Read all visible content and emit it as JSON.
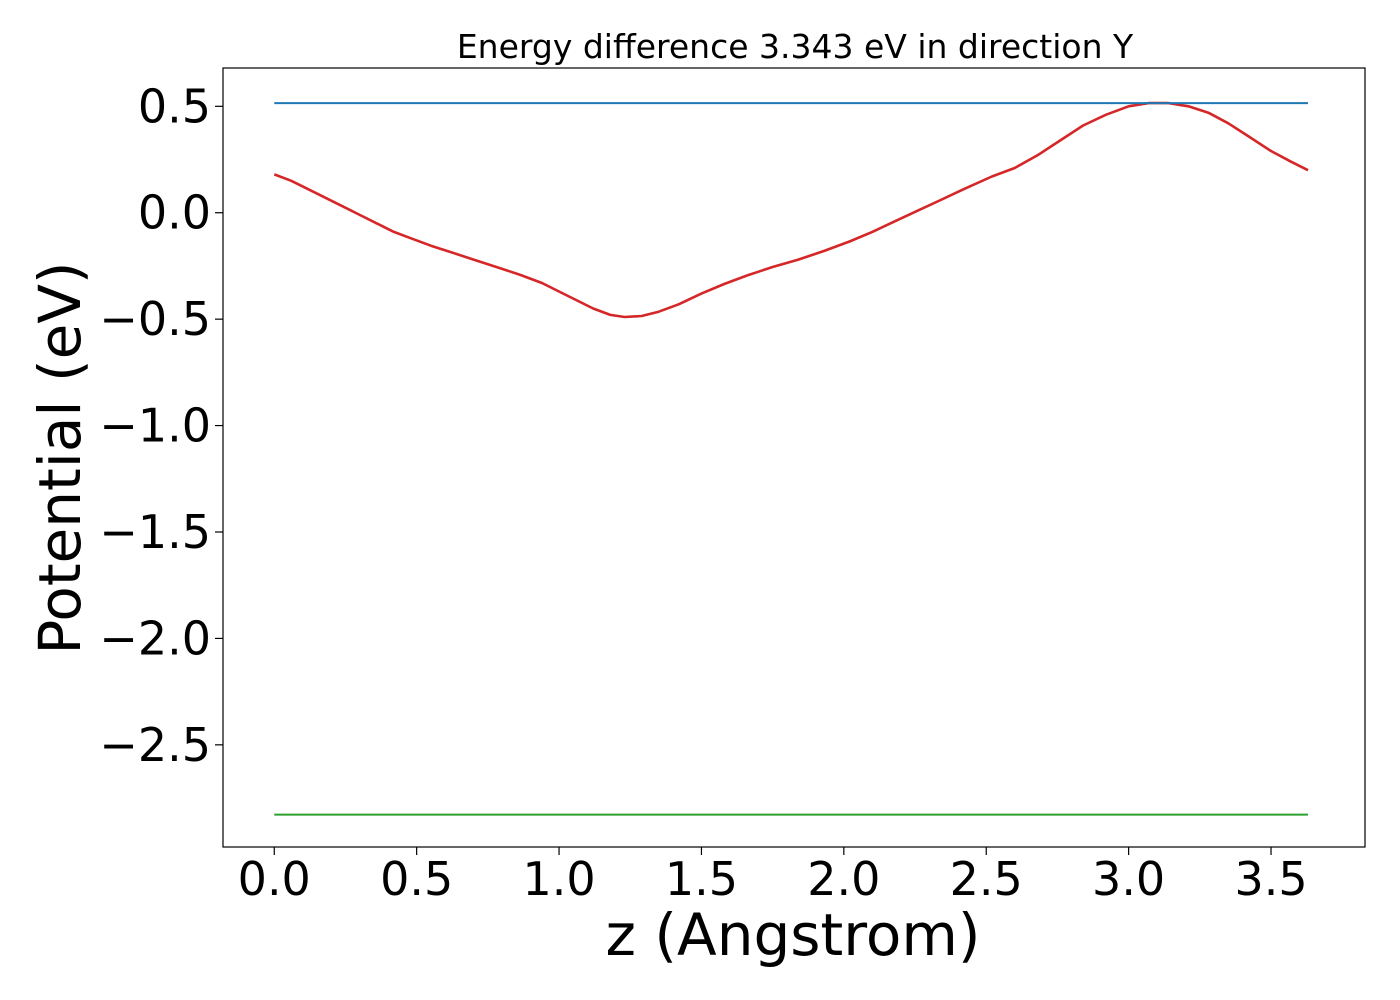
{
  "chart_data": {
    "type": "line",
    "title": "Energy difference 3.343 eV in direction Y",
    "xlabel": "z (Angstrom)",
    "ylabel": "Potential (eV)",
    "xlim": [
      -0.18,
      3.83
    ],
    "ylim": [
      -2.98,
      0.68
    ],
    "xticks": [
      {
        "value": 0.0,
        "label": "0.0"
      },
      {
        "value": 0.5,
        "label": "0.5"
      },
      {
        "value": 1.0,
        "label": "1.0"
      },
      {
        "value": 1.5,
        "label": "1.5"
      },
      {
        "value": 2.0,
        "label": "2.0"
      },
      {
        "value": 2.5,
        "label": "2.5"
      },
      {
        "value": 3.0,
        "label": "3.0"
      },
      {
        "value": 3.5,
        "label": "3.5"
      }
    ],
    "yticks": [
      {
        "value": 0.5,
        "label": "0.5"
      },
      {
        "value": 0.0,
        "label": "0.0"
      },
      {
        "value": -0.5,
        "label": "−0.5"
      },
      {
        "value": -1.0,
        "label": "−1.0"
      },
      {
        "value": -1.5,
        "label": "−1.5"
      },
      {
        "value": -2.0,
        "label": "−2.0"
      },
      {
        "value": -2.5,
        "label": "−2.5"
      }
    ],
    "grid": false,
    "series": [
      {
        "color": "#d62728",
        "x": [
          0.0,
          0.06,
          0.12,
          0.18,
          0.24,
          0.3,
          0.36,
          0.42,
          0.48,
          0.55,
          0.62,
          0.7,
          0.78,
          0.86,
          0.94,
          1.0,
          1.06,
          1.12,
          1.18,
          1.23,
          1.29,
          1.35,
          1.42,
          1.5,
          1.58,
          1.66,
          1.75,
          1.84,
          1.93,
          2.02,
          2.1,
          2.18,
          2.26,
          2.34,
          2.42,
          2.52,
          2.6,
          2.68,
          2.76,
          2.84,
          2.92,
          3.0,
          3.07,
          3.14,
          3.21,
          3.28,
          3.35,
          3.42,
          3.5,
          3.57,
          3.63
        ],
        "y": [
          0.18,
          0.15,
          0.11,
          0.07,
          0.03,
          -0.01,
          -0.05,
          -0.09,
          -0.12,
          -0.155,
          -0.185,
          -0.22,
          -0.255,
          -0.29,
          -0.33,
          -0.37,
          -0.41,
          -0.45,
          -0.48,
          -0.49,
          -0.485,
          -0.465,
          -0.43,
          -0.38,
          -0.335,
          -0.295,
          -0.255,
          -0.22,
          -0.18,
          -0.135,
          -0.09,
          -0.04,
          0.01,
          0.06,
          0.11,
          0.17,
          0.21,
          0.27,
          0.34,
          0.41,
          0.46,
          0.5,
          0.515,
          0.515,
          0.5,
          0.47,
          0.42,
          0.36,
          0.29,
          0.24,
          0.2
        ]
      },
      {
        "color": "#1f77b4",
        "x": [
          0.0,
          3.63
        ],
        "y": [
          0.515,
          0.515
        ]
      },
      {
        "color": "#2ca02c",
        "x": [
          0.0,
          3.63
        ],
        "y": [
          -2.828,
          -2.828
        ]
      }
    ]
  }
}
